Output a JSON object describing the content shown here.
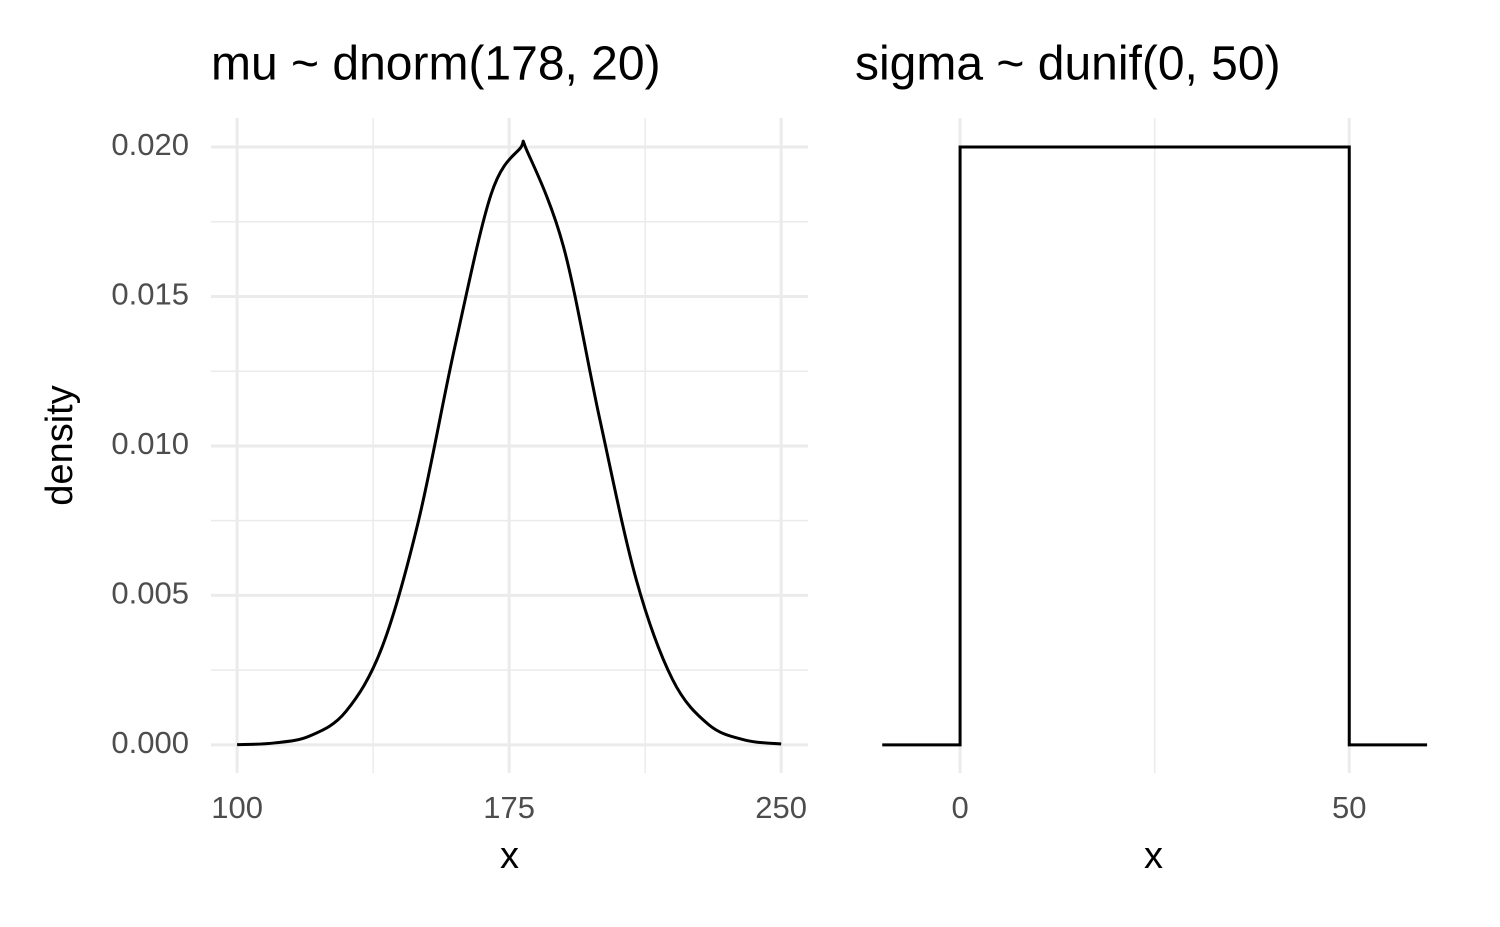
{
  "chart_data": [
    {
      "type": "line",
      "title": "mu ~ dnorm(178, 20)",
      "xlabel": "x",
      "ylabel": "density",
      "x": [
        100,
        110,
        120,
        130,
        140,
        150,
        160,
        170,
        178,
        180,
        190,
        200,
        210,
        220,
        230,
        240,
        250
      ],
      "series": [
        {
          "color": "#000000",
          "values": [
            1e-05,
            6.16e-05,
            0.000298,
            0.00112,
            0.00328,
            0.00749,
            0.0133,
            0.01841,
            0.01995,
            0.01985,
            0.01666,
            0.01089,
            0.00555,
            0.0022,
            0.000679,
            0.000163,
            3.06e-05
          ]
        }
      ],
      "xlim": [
        92.8,
        257.4
      ],
      "xticks": [
        100,
        175,
        250
      ],
      "minor_xticks": [
        137.5,
        212.5
      ],
      "ylim": [
        -0.00094,
        0.02097
      ],
      "yticks": [
        {
          "value": 0,
          "label": "0.000"
        },
        {
          "value": 0.005,
          "label": "0.005"
        },
        {
          "value": 0.01,
          "label": "0.010"
        },
        {
          "value": 0.015,
          "label": "0.015"
        },
        {
          "value": 0.02,
          "label": "0.020"
        }
      ],
      "minor_yticks": [
        0.0025,
        0.0075,
        0.0125,
        0.0175
      ],
      "grid": true
    },
    {
      "type": "line",
      "title": "sigma ~ dunif(0, 50)",
      "xlabel": "x",
      "x": [
        -10,
        0,
        0,
        50,
        50,
        60
      ],
      "series": [
        {
          "color": "#000000",
          "values": [
            0,
            0,
            0.02,
            0.02,
            0,
            0
          ]
        }
      ],
      "xlim": [
        -13.5,
        63.2
      ],
      "xticks": [
        0,
        50
      ],
      "minor_xticks": [
        25
      ],
      "ylim": [
        -0.00094,
        0.02097
      ],
      "grid": true
    }
  ]
}
